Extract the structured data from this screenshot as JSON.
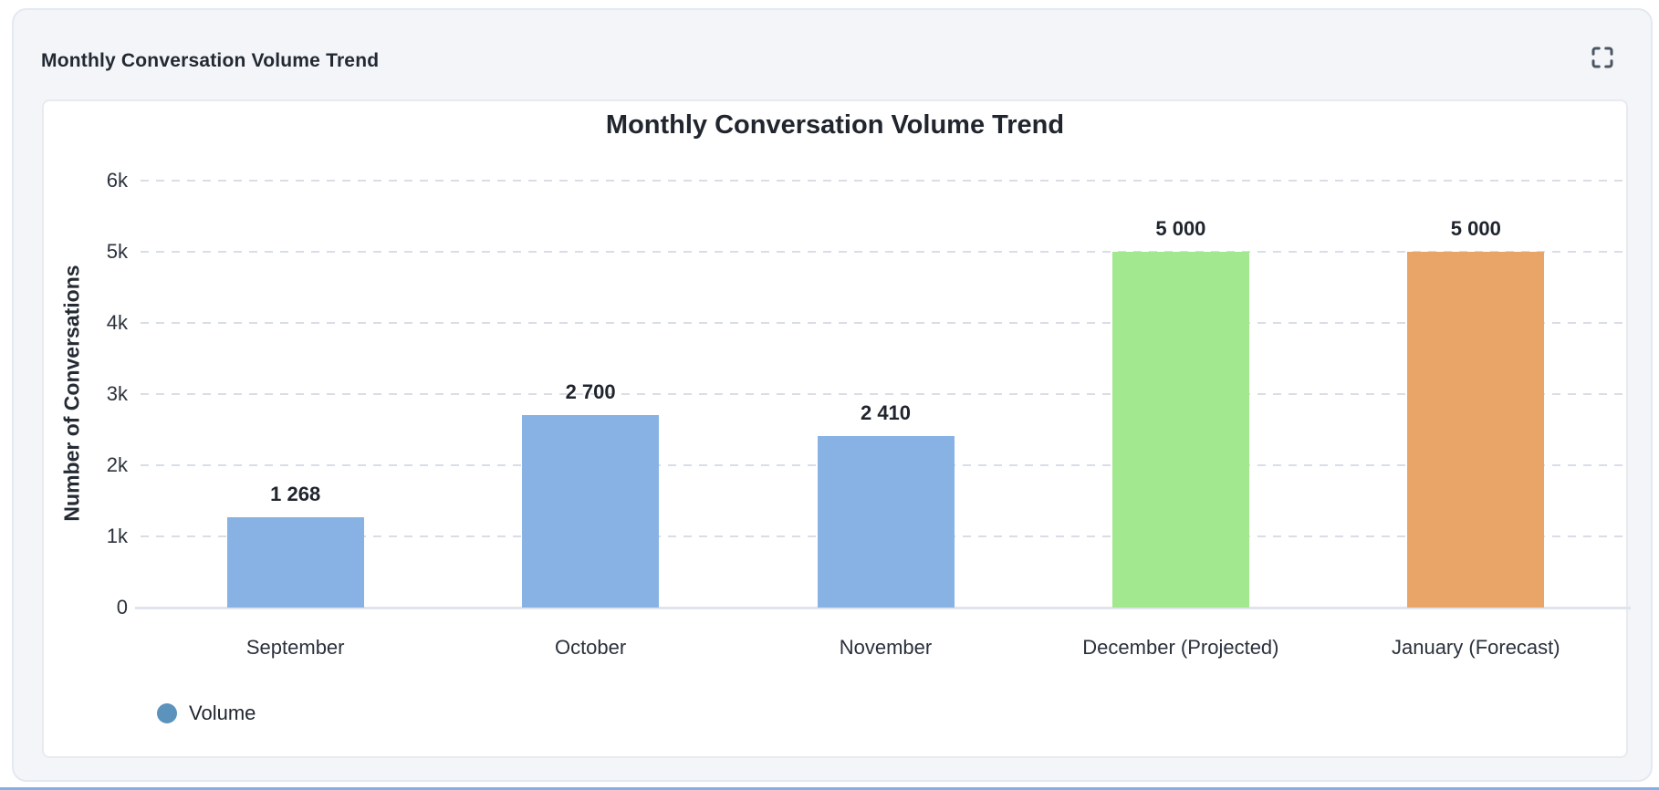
{
  "card": {
    "title": "Monthly Conversation Volume Trend"
  },
  "chart": {
    "title": "Monthly Conversation Volume Trend",
    "y_axis_name": "Number of Conversations",
    "y_ticks": [
      "6k",
      "5k",
      "4k",
      "3k",
      "2k",
      "1k",
      "0"
    ],
    "legend": {
      "label": "Volume",
      "marker_color": "#5b93bd"
    }
  },
  "chart_data": {
    "type": "bar",
    "title": "Monthly Conversation Volume Trend",
    "categories": [
      "September",
      "October",
      "November",
      "December (Projected)",
      "January (Forecast)"
    ],
    "series": [
      {
        "name": "Volume",
        "values": [
          1268,
          2700,
          2410,
          5000,
          5000
        ]
      }
    ],
    "value_labels": [
      "1 268",
      "2 700",
      "2 410",
      "5 000",
      "5 000"
    ],
    "bar_colors": [
      "#88b2e4",
      "#88b2e4",
      "#88b2e4",
      "#a2e88e",
      "#e9a567"
    ],
    "xlabel": "",
    "ylabel": "Number of Conversations",
    "ylim": [
      0,
      6000
    ],
    "y_tick_step": 1000,
    "grid": true,
    "grid_style": "dashed",
    "legend_position": "bottom-left",
    "colors": {
      "blue_bar": "#88b2e4",
      "green_bar": "#a2e88e",
      "orange_bar": "#e9a567",
      "legend_marker": "#5b93bd"
    }
  }
}
